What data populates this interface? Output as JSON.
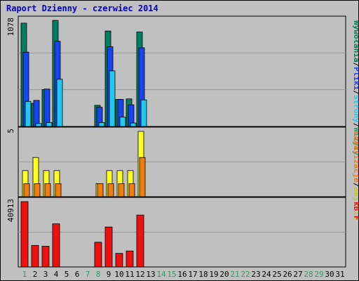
{
  "chart_data": {
    "type": "bar",
    "title": "Raport Dzienny -  czerwiec 2014",
    "days": [
      "1",
      "2",
      "3",
      "4",
      "5",
      "6",
      "7",
      "8",
      "9",
      "10",
      "11",
      "12",
      "13",
      "14",
      "15",
      "16",
      "17",
      "18",
      "19",
      "20",
      "21",
      "22",
      "23",
      "24",
      "25",
      "26",
      "27",
      "28",
      "29",
      "30",
      "31"
    ],
    "weekend_days": [
      "1",
      "7",
      "8",
      "14",
      "15",
      "21",
      "22",
      "28",
      "29"
    ],
    "colors": {
      "title": "#0000cc",
      "weekday_label": "#000000",
      "weekend_label": "#339966",
      "background": "#c0c0c0",
      "plot": "#c0c0c0",
      "grid": "#9a9a9a",
      "wizyty": "#007f5f",
      "strony": "#1545ef",
      "pliki": "#22c8f0",
      "lokalizacje": "#f07d0f",
      "wejscia": "#ffff22",
      "kb": "#ee1111"
    },
    "panels": [
      {
        "ymax_label": "1078",
        "ymax": 1078,
        "legend": [
          {
            "text": "Wywołania",
            "color": "#007f5f"
          },
          {
            "text": "/",
            "color": "#000000"
          },
          {
            "text": "Pliki",
            "color": "#1545ef"
          },
          {
            "text": "/",
            "color": "#000000"
          },
          {
            "text": "Strony",
            "color": "#22c8f0"
          },
          {
            "text": "/",
            "color": "#000000"
          },
          {
            "text": "Wizyty",
            "color": "#339966"
          }
        ],
        "series": [
          {
            "key": "wywolania",
            "color": "#007f5f",
            "values": [
              1050,
              235,
              375,
              1078,
              0,
              0,
              0,
              215,
              970,
              275,
              280,
              960,
              0,
              0,
              0,
              0,
              0,
              0,
              0,
              0,
              0,
              0,
              0,
              0,
              0,
              0,
              0,
              0,
              0,
              0,
              0
            ]
          },
          {
            "key": "pliki",
            "color": "#1545ef",
            "values": [
              755,
              265,
              380,
              865,
              0,
              0,
              0,
              195,
              810,
              275,
              220,
              800,
              0,
              0,
              0,
              0,
              0,
              0,
              0,
              0,
              0,
              0,
              0,
              0,
              0,
              0,
              0,
              0,
              0,
              0,
              0
            ]
          },
          {
            "key": "strony",
            "color": "#22c8f0",
            "values": [
              255,
              30,
              40,
              480,
              0,
              0,
              0,
              40,
              565,
              95,
              35,
              270,
              0,
              0,
              0,
              0,
              0,
              0,
              0,
              0,
              0,
              0,
              0,
              0,
              0,
              0,
              0,
              0,
              0,
              0,
              0
            ]
          }
        ]
      },
      {
        "ymax_label": "5",
        "ymax": 5,
        "legend": [
          {
            "text": "Lokalizacje",
            "color": "#f07d0f"
          },
          {
            "text": "/",
            "color": "#000000"
          },
          {
            "text": "Wejścia",
            "color": "#c8c820"
          }
        ],
        "series": [
          {
            "key": "wejscia",
            "color": "#ffff22",
            "values": [
              2,
              3,
              2,
              2,
              0,
              0,
              0,
              1,
              2,
              2,
              2,
              5,
              0,
              0,
              0,
              0,
              0,
              0,
              0,
              0,
              0,
              0,
              0,
              0,
              0,
              0,
              0,
              0,
              0,
              0,
              0
            ]
          },
          {
            "key": "lokalizacje",
            "color": "#f07d0f",
            "values": [
              1,
              1,
              1,
              1,
              0,
              0,
              0,
              1,
              1,
              1,
              1,
              3,
              0,
              0,
              0,
              0,
              0,
              0,
              0,
              0,
              0,
              0,
              0,
              0,
              0,
              0,
              0,
              0,
              0,
              0,
              0
            ]
          }
        ]
      },
      {
        "ymax_label": "40913",
        "ymax": 40913,
        "legend": [
          {
            "text": "kB F",
            "color": "#ee1111"
          }
        ],
        "series": [
          {
            "key": "kb",
            "color": "#ee1111",
            "values": [
              40913,
              13500,
              13000,
              27000,
              0,
              0,
              0,
              15500,
              25000,
              8500,
              10000,
              32500,
              0,
              0,
              0,
              0,
              0,
              0,
              0,
              0,
              0,
              0,
              0,
              0,
              0,
              0,
              0,
              0,
              0,
              0,
              0
            ]
          }
        ]
      }
    ]
  }
}
